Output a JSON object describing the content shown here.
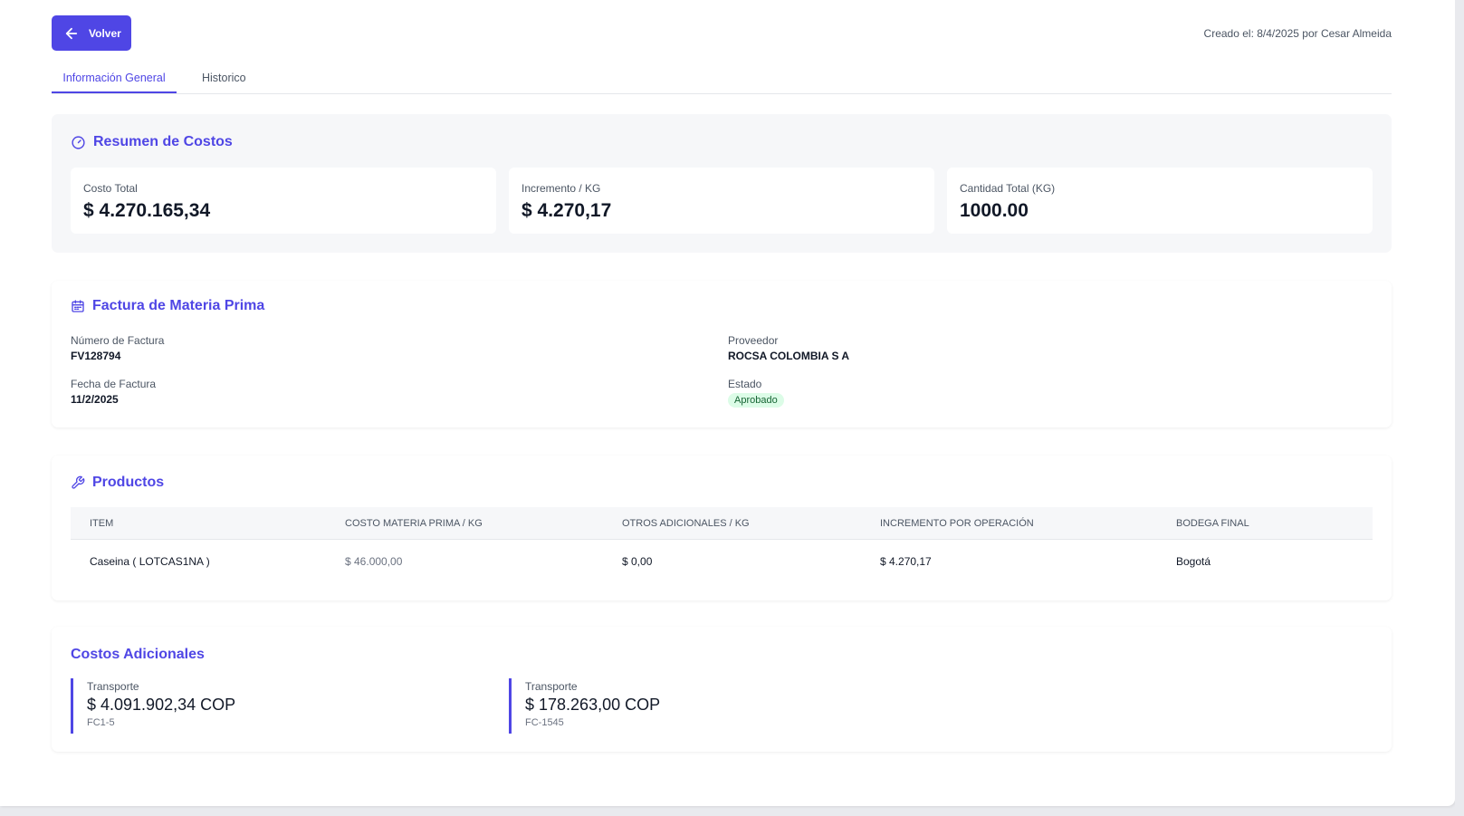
{
  "header": {
    "back_label": "Volver",
    "created_text": "Creado el: 8/4/2025 por Cesar Almeida"
  },
  "tabs": [
    {
      "label": "Información General",
      "active": true
    },
    {
      "label": "Historico",
      "active": false
    }
  ],
  "summary": {
    "title": "Resumen de Costos",
    "title_icon": "gauge-icon",
    "metrics": [
      {
        "label": "Costo Total",
        "value": "$ 4.270.165,34"
      },
      {
        "label": "Incremento / KG",
        "value": "$ 4.270,17"
      },
      {
        "label": "Cantidad Total (KG)",
        "value": "1000.00"
      }
    ]
  },
  "invoice": {
    "title": "Factura de Materia Prima",
    "title_icon": "calendar-icon",
    "number_label": "Número de Factura",
    "number_value": "FV128794",
    "date_label": "Fecha de Factura",
    "date_value": "11/2/2025",
    "supplier_label": "Proveedor",
    "supplier_value": "ROCSA COLOMBIA S A",
    "status_label": "Estado",
    "status_value": "Aprobado"
  },
  "products": {
    "title": "Productos",
    "title_icon": "wrench-icon",
    "columns": [
      "Item",
      "Costo Materia Prima / KG",
      "Otros Adicionales / KG",
      "Incremento por Operación",
      "Bodega Final"
    ],
    "rows": [
      [
        "Caseina ( LOTCAS1NA )",
        "$ 46.000,00",
        "$ 0,00",
        "$ 4.270,17",
        "Bogotá"
      ]
    ]
  },
  "additional": {
    "title": "Costos Adicionales",
    "items": [
      {
        "label": "Transporte",
        "value": "$ 4.091.902,34 COP",
        "ref": "FC1-5"
      },
      {
        "label": "Transporte",
        "value": "$ 178.263,00 COP",
        "ref": "FC-1545"
      }
    ]
  },
  "colors": {
    "accent": "#4f46e5",
    "badge_bg": "#dcfce7",
    "badge_text": "#166534"
  }
}
